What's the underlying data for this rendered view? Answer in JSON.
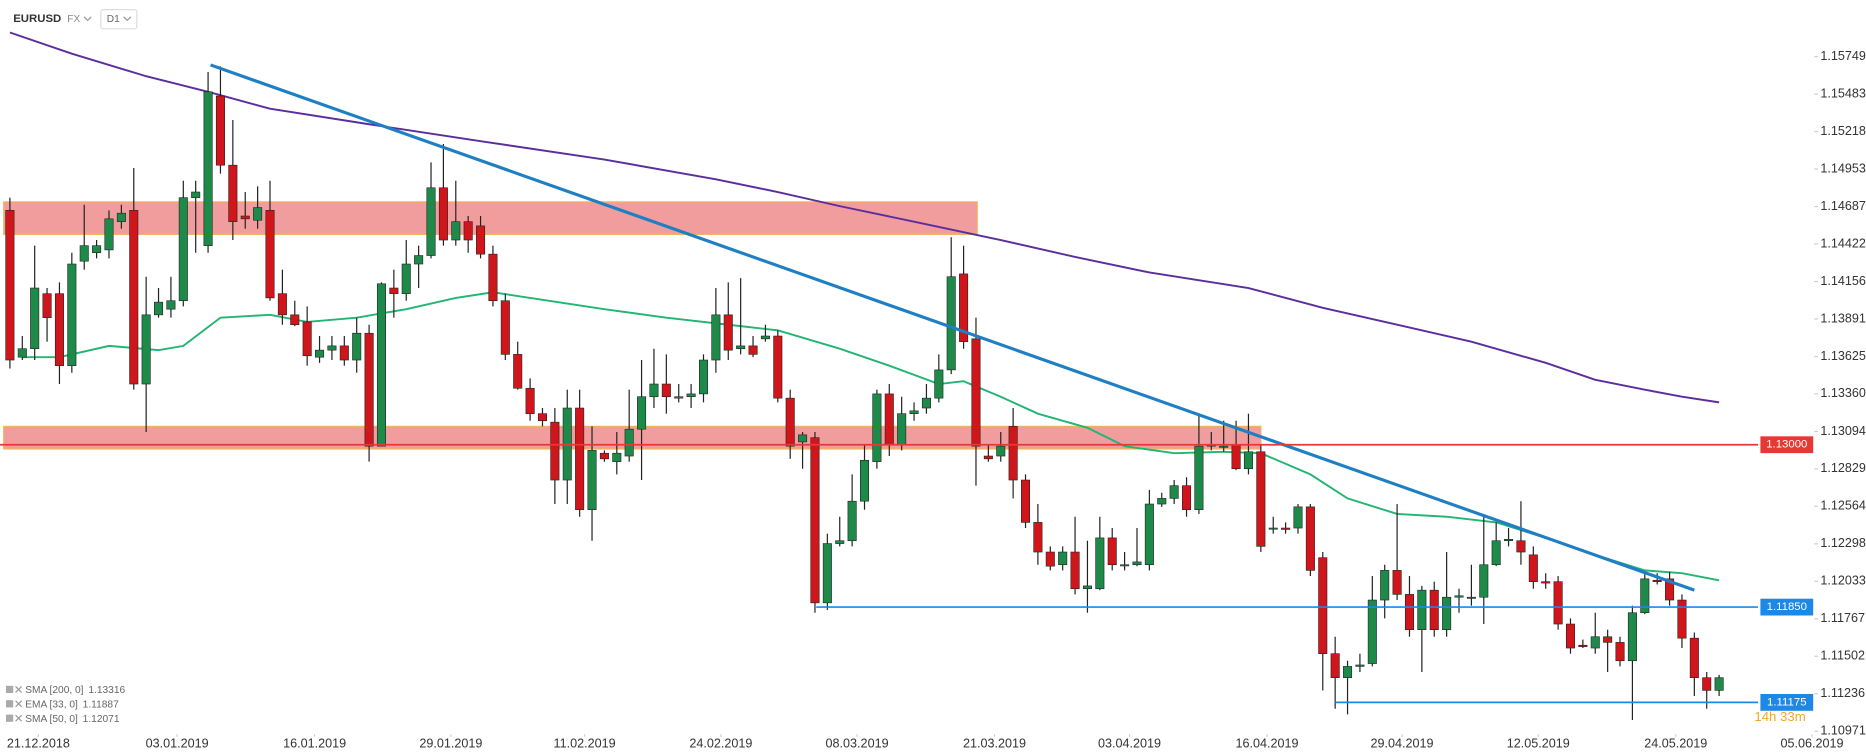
{
  "chart_data": {
    "type": "candlestick",
    "symbol": "EURUSD",
    "market": "FX",
    "timeframe": "D1",
    "countdown": "14h 33m",
    "up_color": "#1e8a4a",
    "down_color": "#d0161b",
    "xlim": [
      -0.8,
      145.5
    ],
    "ylim": [
      1.1095,
      1.1615
    ],
    "yticks": [
      1.15749,
      1.15483,
      1.15218,
      1.14953,
      1.14687,
      1.14422,
      1.14156,
      1.13891,
      1.13625,
      {
        "value": 1.1336,
        "label": "1.13360"
      },
      1.13094,
      1.12829,
      1.12564,
      1.12298,
      1.12033,
      1.11767,
      1.11502,
      1.11236,
      1.10971
    ],
    "xticks": [
      {
        "value": 2.3,
        "label": "21.12.2018"
      },
      {
        "value": 13.5,
        "label": "03.01.2019"
      },
      {
        "value": 24.6,
        "label": "16.01.2019"
      },
      {
        "value": 35.6,
        "label": "29.01.2019"
      },
      {
        "value": 46.4,
        "label": "11.02.2019"
      },
      {
        "value": 57.4,
        "label": "24.02.2019"
      },
      {
        "value": 68.4,
        "label": "08.03.2019"
      },
      {
        "value": 79.5,
        "label": "21.03.2019"
      },
      {
        "value": 90.4,
        "label": "03.04.2019"
      },
      {
        "value": 101.5,
        "label": "16.04.2019"
      },
      {
        "value": 112.4,
        "label": "29.04.2019"
      },
      {
        "value": 123.4,
        "label": "12.05.2019"
      },
      {
        "value": 134.5,
        "label": "24.05.2019"
      },
      {
        "value": 145.5,
        "label": "05.06.2019"
      }
    ],
    "open": [
      1.1466,
      1.1362,
      1.1368,
      1.1407,
      1.1407,
      1.1356,
      1.143,
      1.1436,
      1.1438,
      1.1458,
      1.1466,
      1.1343,
      1.1392,
      1.1396,
      1.1402,
      1.1475,
      1.1441,
      1.1547,
      1.1498,
      1.1462,
      1.1459,
      1.1466,
      1.1407,
      1.1392,
      1.1387,
      1.1362,
      1.1367,
      1.137,
      1.136,
      1.1379,
      1.1299,
      1.1411,
      1.1407,
      1.1428,
      1.1434,
      1.1482,
      1.1445,
      1.1458,
      1.1455,
      1.1435,
      1.1402,
      1.1364,
      1.134,
      1.1322,
      1.1316,
      1.1275,
      1.1326,
      1.1254,
      1.1294,
      1.1288,
      1.1292,
      1.1311,
      1.1334,
      1.1343,
      1.1333,
      1.1334,
      1.1336,
      1.136,
      1.1392,
      1.1368,
      1.137,
      1.1375,
      1.1377,
      1.1333,
      1.1302,
      1.1305,
      1.1188,
      1.123,
      1.1232,
      1.126,
      1.1288,
      1.1336,
      1.13,
      1.1322,
      1.1326,
      1.1333,
      1.1353,
      1.1421,
      1.1375,
      1.1292,
      1.1292,
      1.1313,
      1.1275,
      1.1245,
      1.1224,
      1.1215,
      1.1224,
      1.1198,
      1.1198,
      1.1234,
      1.1215,
      1.1215,
      1.1215,
      1.1258,
      1.1262,
      1.1271,
      1.1254,
      1.1299,
      1.1299,
      1.13,
      1.1283,
      1.1295,
      1.1241,
      1.1241,
      1.1241,
      1.1256,
      1.122,
      1.1152,
      1.1135,
      1.1143,
      1.1145,
      1.119,
      1.1211,
      1.1194,
      1.1169,
      1.1197,
      1.1169,
      1.1192,
      1.1192,
      1.1192,
      1.1215,
      1.1232,
      1.1232,
      1.1222,
      1.1203,
      1.1203,
      1.1173,
      1.1158,
      1.1156,
      1.1164,
      1.116,
      1.1147,
      1.1181,
      1.1204,
      1.1205,
      1.119,
      1.1163,
      1.1135,
      1.1126
    ],
    "high": [
      1.1475,
      1.1377,
      1.1441,
      1.1411,
      1.1415,
      1.1436,
      1.147,
      1.1445,
      1.1466,
      1.147,
      1.1496,
      1.1419,
      1.1411,
      1.1419,
      1.1487,
      1.1487,
      1.1564,
      1.1568,
      1.153,
      1.1479,
      1.1483,
      1.1487,
      1.1424,
      1.1402,
      1.1398,
      1.1377,
      1.1377,
      1.1377,
      1.139,
      1.1385,
      1.1415,
      1.1424,
      1.1445,
      1.1441,
      1.15,
      1.1513,
      1.1487,
      1.1462,
      1.1462,
      1.1441,
      1.1407,
      1.1373,
      1.1347,
      1.1326,
      1.1326,
      1.1339,
      1.1339,
      1.1313,
      1.1296,
      1.1309,
      1.1339,
      1.136,
      1.1368,
      1.1364,
      1.1343,
      1.1343,
      1.1364,
      1.1411,
      1.1415,
      1.1418,
      1.1377,
      1.1385,
      1.1381,
      1.1339,
      1.1309,
      1.1309,
      1.1237,
      1.1249,
      1.1279,
      1.13,
      1.1339,
      1.1343,
      1.1334,
      1.133,
      1.1343,
      1.1364,
      1.1447,
      1.1441,
      1.139,
      1.13,
      1.1309,
      1.1326,
      1.1279,
      1.1258,
      1.1228,
      1.1228,
      1.1249,
      1.1232,
      1.1249,
      1.1241,
      1.1224,
      1.1241,
      1.1268,
      1.1266,
      1.1275,
      1.1277,
      1.1322,
      1.1309,
      1.1317,
      1.1317,
      1.1322,
      1.13,
      1.1249,
      1.1245,
      1.1258,
      1.1258,
      1.1224,
      1.1164,
      1.1147,
      1.1152,
      1.1207,
      1.1215,
      1.1258,
      1.1207,
      1.12,
      1.1203,
      1.1224,
      1.1198,
      1.1215,
      1.1249,
      1.1245,
      1.1241,
      1.126,
      1.1228,
      1.1209,
      1.1207,
      1.1177,
      1.1162,
      1.1181,
      1.1169,
      1.1164,
      1.1186,
      1.1209,
      1.1209,
      1.121,
      1.1194,
      1.1167,
      1.1139,
      1.1137
    ],
    "low": [
      1.1354,
      1.136,
      1.136,
      1.1373,
      1.1343,
      1.1351,
      1.1424,
      1.1432,
      1.1432,
      1.1453,
      1.1339,
      1.1309,
      1.139,
      1.139,
      1.1398,
      1.1436,
      1.1436,
      1.1492,
      1.1445,
      1.1453,
      1.1453,
      1.1402,
      1.1385,
      1.1384,
      1.1356,
      1.1358,
      1.136,
      1.1356,
      1.1351,
      1.1288,
      1.1299,
      1.139,
      1.1402,
      1.1411,
      1.1432,
      1.1441,
      1.1441,
      1.1436,
      1.1432,
      1.1398,
      1.136,
      1.1339,
      1.1317,
      1.1313,
      1.1258,
      1.1258,
      1.1249,
      1.1232,
      1.1288,
      1.1279,
      1.1288,
      1.1275,
      1.1326,
      1.1322,
      1.133,
      1.1326,
      1.133,
      1.1351,
      1.136,
      1.1364,
      1.1362,
      1.1373,
      1.133,
      1.129,
      1.1283,
      1.1181,
      1.1183,
      1.1228,
      1.1228,
      1.1254,
      1.1283,
      1.1292,
      1.1296,
      1.1317,
      1.1322,
      1.133,
      1.135,
      1.1368,
      1.1271,
      1.1288,
      1.1288,
      1.1262,
      1.1241,
      1.1215,
      1.1211,
      1.1211,
      1.1194,
      1.1181,
      1.1197,
      1.1211,
      1.1211,
      1.1214,
      1.1211,
      1.1256,
      1.1258,
      1.1249,
      1.1251,
      1.1296,
      1.1295,
      1.1282,
      1.1279,
      1.1224,
      1.1237,
      1.1237,
      1.1237,
      1.1207,
      1.1126,
      1.1113,
      1.1109,
      1.1139,
      1.1143,
      1.1177,
      1.119,
      1.1164,
      1.1139,
      1.1164,
      1.1164,
      1.1181,
      1.1186,
      1.1173,
      1.1214,
      1.1228,
      1.1215,
      1.1198,
      1.1198,
      1.1169,
      1.1152,
      1.1156,
      1.1152,
      1.1139,
      1.1143,
      1.1105,
      1.118,
      1.1201,
      1.1186,
      1.1156,
      1.1122,
      1.1113,
      1.1122
    ],
    "close": [
      1.136,
      1.1368,
      1.1411,
      1.139,
      1.1356,
      1.1428,
      1.1441,
      1.1441,
      1.146,
      1.1464,
      1.1343,
      1.1392,
      1.1401,
      1.1402,
      1.1475,
      1.1479,
      1.155,
      1.1498,
      1.1458,
      1.146,
      1.1468,
      1.1404,
      1.1392,
      1.1385,
      1.1363,
      1.1367,
      1.137,
      1.136,
      1.1379,
      1.1299,
      1.1414,
      1.1407,
      1.1428,
      1.1434,
      1.1482,
      1.1445,
      1.1458,
      1.1445,
      1.1435,
      1.1402,
      1.1364,
      1.134,
      1.1322,
      1.1317,
      1.1275,
      1.1326,
      1.1254,
      1.1296,
      1.129,
      1.1294,
      1.1311,
      1.1334,
      1.1343,
      1.1334,
      1.1334,
      1.1336,
      1.136,
      1.1392,
      1.1367,
      1.137,
      1.1364,
      1.1377,
      1.1333,
      1.1299,
      1.1307,
      1.1188,
      1.123,
      1.1232,
      1.126,
      1.1289,
      1.1336,
      1.13,
      1.1322,
      1.1324,
      1.1333,
      1.1353,
      1.1419,
      1.1373,
      1.1299,
      1.129,
      1.1299,
      1.1275,
      1.1245,
      1.1224,
      1.1214,
      1.1224,
      1.1198,
      1.12,
      1.1234,
      1.1215,
      1.1215,
      1.1217,
      1.1258,
      1.1262,
      1.1271,
      1.1254,
      1.1299,
      1.13,
      1.1299,
      1.1283,
      1.1295,
      1.1228,
      1.1241,
      1.124,
      1.1256,
      1.1211,
      1.1152,
      1.1135,
      1.1143,
      1.1144,
      1.119,
      1.1211,
      1.1194,
      1.1169,
      1.1197,
      1.1169,
      1.1192,
      1.1193,
      1.1192,
      1.1215,
      1.1232,
      1.1233,
      1.1224,
      1.1203,
      1.1202,
      1.1173,
      1.1156,
      1.1157,
      1.1164,
      1.116,
      1.1147,
      1.1181,
      1.1205,
      1.1203,
      1.119,
      1.1163,
      1.1135,
      1.1126,
      1.1135
    ],
    "indicators": [
      {
        "name": "SMA [200, 0]",
        "value": 1.13316,
        "color": "#5b2d9e",
        "x": [
          0,
          5,
          11,
          16,
          21,
          29,
          38,
          48,
          57,
          62,
          67,
          73,
          80,
          86,
          92,
          100,
          106,
          112,
          118,
          124,
          128,
          132,
          135,
          138
        ],
        "values": [
          1.1592,
          1.1577,
          1.1561,
          1.155,
          1.1538,
          1.1527,
          1.1515,
          1.1502,
          1.1488,
          1.1479,
          1.1469,
          1.1458,
          1.1445,
          1.1433,
          1.1422,
          1.1411,
          1.1397,
          1.1385,
          1.1373,
          1.1358,
          1.1346,
          1.1339,
          1.1334,
          1.133
        ]
      },
      {
        "name": "EMA [33, 0]",
        "value": 1.11887
      },
      {
        "name": "SMA [50, 0]",
        "value": 1.12071,
        "color": "#22b573",
        "x": [
          1,
          4,
          8,
          12,
          14,
          17,
          21,
          24,
          28,
          32,
          36,
          39,
          42,
          48,
          53,
          59,
          62,
          67,
          71,
          75,
          77,
          80,
          83,
          87,
          90,
          94,
          98,
          101,
          105,
          108,
          112,
          116,
          120,
          124,
          128,
          132,
          135,
          138
        ],
        "values": [
          1.1362,
          1.1362,
          1.137,
          1.1367,
          1.137,
          1.139,
          1.1392,
          1.1387,
          1.139,
          1.1396,
          1.1404,
          1.1408,
          1.1404,
          1.1396,
          1.139,
          1.1384,
          1.1381,
          1.1368,
          1.1356,
          1.1343,
          1.1345,
          1.1334,
          1.1322,
          1.1312,
          1.1299,
          1.1294,
          1.1295,
          1.1294,
          1.1279,
          1.1262,
          1.1251,
          1.1249,
          1.1245,
          1.1234,
          1.1222,
          1.1211,
          1.1209,
          1.1204
        ]
      }
    ],
    "zones": [
      {
        "x": [
          -0.5,
          78.1
        ],
        "y": [
          1.1449,
          1.1472
        ],
        "color": "#f08c8c"
      },
      {
        "x": [
          -0.5,
          101
        ],
        "y": [
          1.1297,
          1.1313
        ],
        "color": "#f08c8c"
      }
    ],
    "trendline": {
      "x": [
        16.2,
        136
      ],
      "values": [
        1.1569,
        1.1197
      ],
      "color": "#1f7fc4"
    },
    "hlines": [
      {
        "value": 1.13,
        "label": "1.13000",
        "color": "#e53935",
        "x_start": -0.8
      },
      {
        "value": 1.1185,
        "label": "1.11850",
        "color": "#1e88e5",
        "x_start": 65.1
      },
      {
        "value": 1.11175,
        "label": "1.11175",
        "color": "#1e88e5",
        "x_start": 107
      }
    ]
  }
}
